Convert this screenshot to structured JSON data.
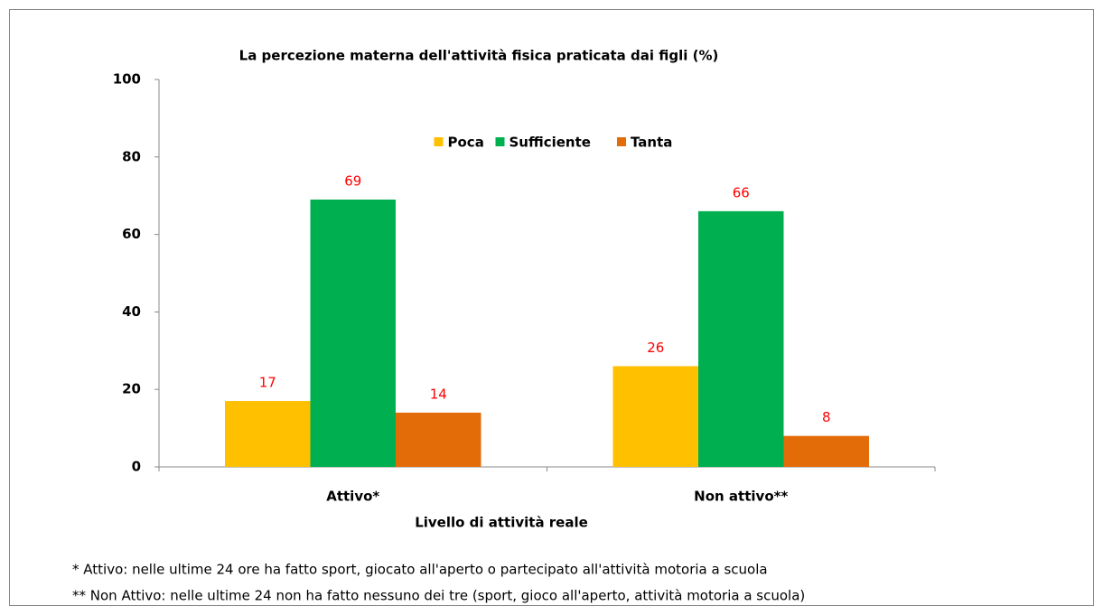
{
  "chart_data": {
    "type": "bar",
    "title": "La percezione materna dell'attività fisica praticata dai figli (%)",
    "x_label": "Livello di attività reale",
    "categories": [
      "Attivo*",
      "Non attivo**"
    ],
    "series": [
      {
        "name": "Poca",
        "color": "#ffc000",
        "values": [
          17,
          26
        ]
      },
      {
        "name": "Sufficiente",
        "color": "#00b050",
        "values": [
          69,
          66
        ]
      },
      {
        "name": "Tanta",
        "color": "#e36c09",
        "values": [
          14,
          8
        ]
      }
    ],
    "value_label_color": "#ff0000",
    "ylim": [
      0,
      100
    ],
    "yticks": [
      0,
      20,
      40,
      60,
      80,
      100
    ],
    "grid": false,
    "legend": "top",
    "annotations": [
      "* Attivo: nelle ultime 24 ore ha fatto sport, giocato all'aperto o partecipato all'attività motoria a scuola",
      "** Non Attivo: nelle ultime 24 non ha fatto nessuno dei tre (sport, gioco all'aperto, attività motoria a scuola)"
    ]
  }
}
